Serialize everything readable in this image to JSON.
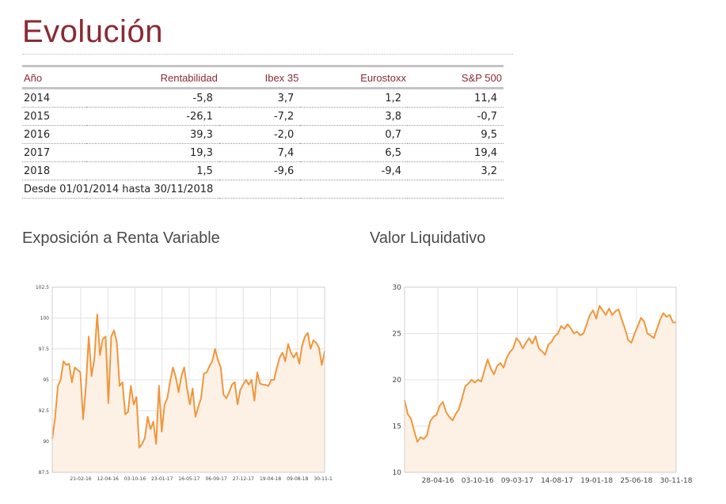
{
  "title": "Evolución",
  "table": {
    "headers": [
      "Año",
      "Rentabilidad",
      "Ibex 35",
      "Eurostoxx",
      "S&P 500"
    ],
    "rows": [
      [
        "2014",
        "-5,8",
        "3,7",
        "1,2",
        "11,4"
      ],
      [
        "2015",
        "-26,1",
        "-7,2",
        "3,8",
        "-0,7"
      ],
      [
        "2016",
        "39,3",
        "-2,0",
        "0,7",
        "9,5"
      ],
      [
        "2017",
        "19,3",
        "7,4",
        "6,5",
        "19,4"
      ],
      [
        "2018",
        "1,5",
        "-9,6",
        "-9,4",
        "3,2"
      ]
    ],
    "note": "Desde 01/01/2014 hasta 30/11/2018"
  },
  "chart_titles": {
    "exposicion": "Exposición a Renta Variable",
    "valor": "Valor Liquidativo"
  },
  "colors": {
    "accent": "#8a2a33",
    "line": "#f0963c",
    "fill": "#fdf1e6"
  },
  "chart_data": [
    {
      "type": "area",
      "title": "Exposición a Renta Variable",
      "xlabel": "",
      "ylabel": "",
      "ylim": [
        87.5,
        102.5
      ],
      "y_ticks": [
        "87.5",
        "90",
        "92.5",
        "95",
        "97.5",
        "100",
        "102.5"
      ],
      "y_tick_values": [
        87.5,
        90,
        92.5,
        95,
        97.5,
        100,
        102.5
      ],
      "x_ticks": [
        "21-02-16",
        "12-04-16",
        "03-10-16",
        "23-01-17",
        "16-05-17",
        "06-09-17",
        "27-12-17",
        "19-04-18",
        "09-08-18",
        "30-11-18"
      ],
      "grid": true,
      "values": [
        90.2,
        91.9,
        94.5,
        95.0,
        96.5,
        96.2,
        96.3,
        94.8,
        96.0,
        95.8,
        95.6,
        91.8,
        94.5,
        98.5,
        95.3,
        96.7,
        100.3,
        97.0,
        98.3,
        98.5,
        93.1,
        98.5,
        99.0,
        98.0,
        94.5,
        94.8,
        92.2,
        92.4,
        94.5,
        93.0,
        93.6,
        89.5,
        89.8,
        90.3,
        92.0,
        91.0,
        91.6,
        89.8,
        94.5,
        90.8,
        93.0,
        93.5,
        94.9,
        96.0,
        95.2,
        94.0,
        95.3,
        96.0,
        94.3,
        93.0,
        94.3,
        92.0,
        92.8,
        93.5,
        95.5,
        95.6,
        96.1,
        96.5,
        97.5,
        96.6,
        96.0,
        93.8,
        93.5,
        94.0,
        94.6,
        94.8,
        93.0,
        94.2,
        94.6,
        95.0,
        94.6,
        95.0,
        93.3,
        95.6,
        94.7,
        94.6,
        94.6,
        94.5,
        95.0,
        95.0,
        96.0,
        96.8,
        97.2,
        96.5,
        97.9,
        97.2,
        96.8,
        97.2,
        96.3,
        97.8,
        98.5,
        98.8,
        97.5,
        98.2,
        98.0,
        97.6,
        96.2,
        97.3
      ]
    },
    {
      "type": "area",
      "title": "Valor Liquidativo",
      "xlabel": "",
      "ylabel": "",
      "ylim": [
        10,
        30
      ],
      "y_ticks": [
        "10",
        "15",
        "20",
        "25",
        "30"
      ],
      "y_tick_values": [
        10,
        15,
        20,
        25,
        30
      ],
      "x_ticks": [
        "28-04-16",
        "03-10-16",
        "09-03-17",
        "14-08-17",
        "19-01-18",
        "25-06-18",
        "30-11-18"
      ],
      "grid": true,
      "values": [
        17.8,
        16.3,
        15.8,
        14.5,
        13.3,
        13.8,
        13.6,
        14.0,
        15.5,
        16.0,
        16.2,
        17.2,
        17.6,
        16.5,
        16.0,
        15.6,
        16.3,
        16.8,
        18.0,
        19.3,
        19.6,
        20.0,
        19.7,
        20.0,
        19.8,
        21.0,
        22.2,
        21.2,
        20.6,
        21.5,
        21.8,
        21.3,
        22.4,
        23.0,
        23.4,
        24.5,
        24.1,
        23.4,
        24.0,
        24.5,
        23.9,
        24.7,
        23.4,
        23.1,
        22.7,
        23.8,
        24.1,
        24.7,
        25.0,
        25.8,
        25.5,
        26.0,
        25.6,
        25.0,
        25.2,
        24.8,
        25.0,
        26.0,
        27.0,
        27.5,
        26.6,
        28.0,
        27.5,
        27.0,
        27.7,
        27.0,
        27.4,
        27.6,
        26.5,
        25.5,
        24.3,
        24.0,
        25.0,
        25.8,
        26.7,
        26.3,
        25.0,
        24.8,
        24.5,
        25.5,
        26.5,
        27.2,
        26.8,
        27.0,
        26.2,
        26.2
      ]
    }
  ]
}
